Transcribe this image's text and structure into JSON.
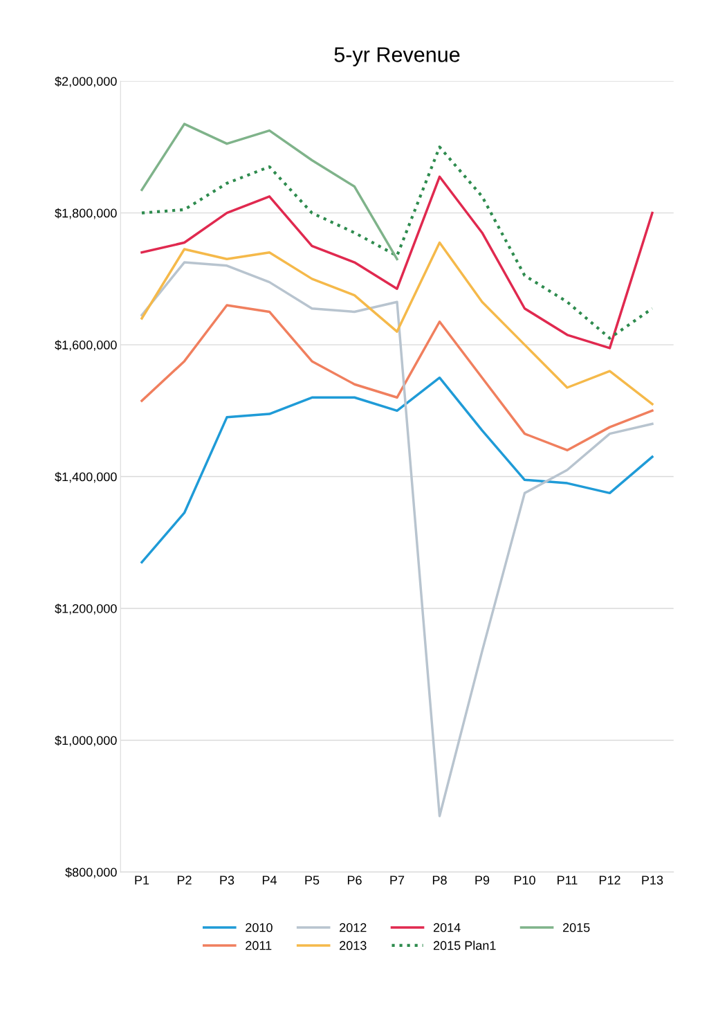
{
  "chart_data": {
    "type": "line",
    "title": "5-yr Revenue",
    "categories": [
      "P1",
      "P2",
      "P3",
      "P4",
      "P5",
      "P6",
      "P7",
      "P8",
      "P9",
      "P10",
      "P11",
      "P12",
      "P13"
    ],
    "series": [
      {
        "name": "2010",
        "color": "#1f9bd7",
        "values": [
          1270000,
          1345000,
          1490000,
          1495000,
          1520000,
          1520000,
          1500000,
          1550000,
          1470000,
          1395000,
          1390000,
          1375000,
          1430000
        ]
      },
      {
        "name": "2011",
        "color": "#f07f5e",
        "values": [
          1515000,
          1575000,
          1660000,
          1650000,
          1575000,
          1540000,
          1520000,
          1635000,
          1550000,
          1465000,
          1440000,
          1475000,
          1500000
        ]
      },
      {
        "name": "2012",
        "color": "#b8c4cf",
        "values": [
          1645000,
          1725000,
          1720000,
          1695000,
          1655000,
          1650000,
          1665000,
          885000,
          1135000,
          1375000,
          1410000,
          1465000,
          1480000
        ]
      },
      {
        "name": "2013",
        "color": "#f5b94a",
        "values": [
          1640000,
          1745000,
          1730000,
          1740000,
          1700000,
          1675000,
          1620000,
          1755000,
          1665000,
          1600000,
          1535000,
          1560000,
          1510000
        ]
      },
      {
        "name": "2014",
        "color": "#e0294f",
        "values": [
          1740000,
          1755000,
          1800000,
          1825000,
          1750000,
          1725000,
          1685000,
          1855000,
          1770000,
          1655000,
          1615000,
          1595000,
          1800000
        ]
      },
      {
        "name": "2015 Plan1",
        "color": "#2e8b4e",
        "line_style": "dotted",
        "values": [
          1800000,
          1805000,
          1845000,
          1870000,
          1800000,
          1770000,
          1735000,
          1900000,
          1825000,
          1705000,
          1665000,
          1610000,
          1655000
        ]
      },
      {
        "name": "2015",
        "color": "#7fb38a",
        "values": [
          1835000,
          1935000,
          1905000,
          1925000,
          1880000,
          1840000,
          1730000,
          null,
          null,
          null,
          null,
          null,
          null
        ]
      }
    ],
    "ylim": [
      800000,
      2000000
    ],
    "yticks": [
      {
        "value": 800000,
        "label": "$800,000"
      },
      {
        "value": 1000000,
        "label": "$1,000,000"
      },
      {
        "value": 1200000,
        "label": "$1,200,000"
      },
      {
        "value": 1400000,
        "label": "$1,400,000"
      },
      {
        "value": 1600000,
        "label": "$1,600,000"
      },
      {
        "value": 1800000,
        "label": "$1,800,000"
      },
      {
        "value": 2000000,
        "label": "$2,000,000"
      }
    ],
    "grid": "y",
    "legend": "bottom",
    "line_style": "solid",
    "marker": "none"
  }
}
